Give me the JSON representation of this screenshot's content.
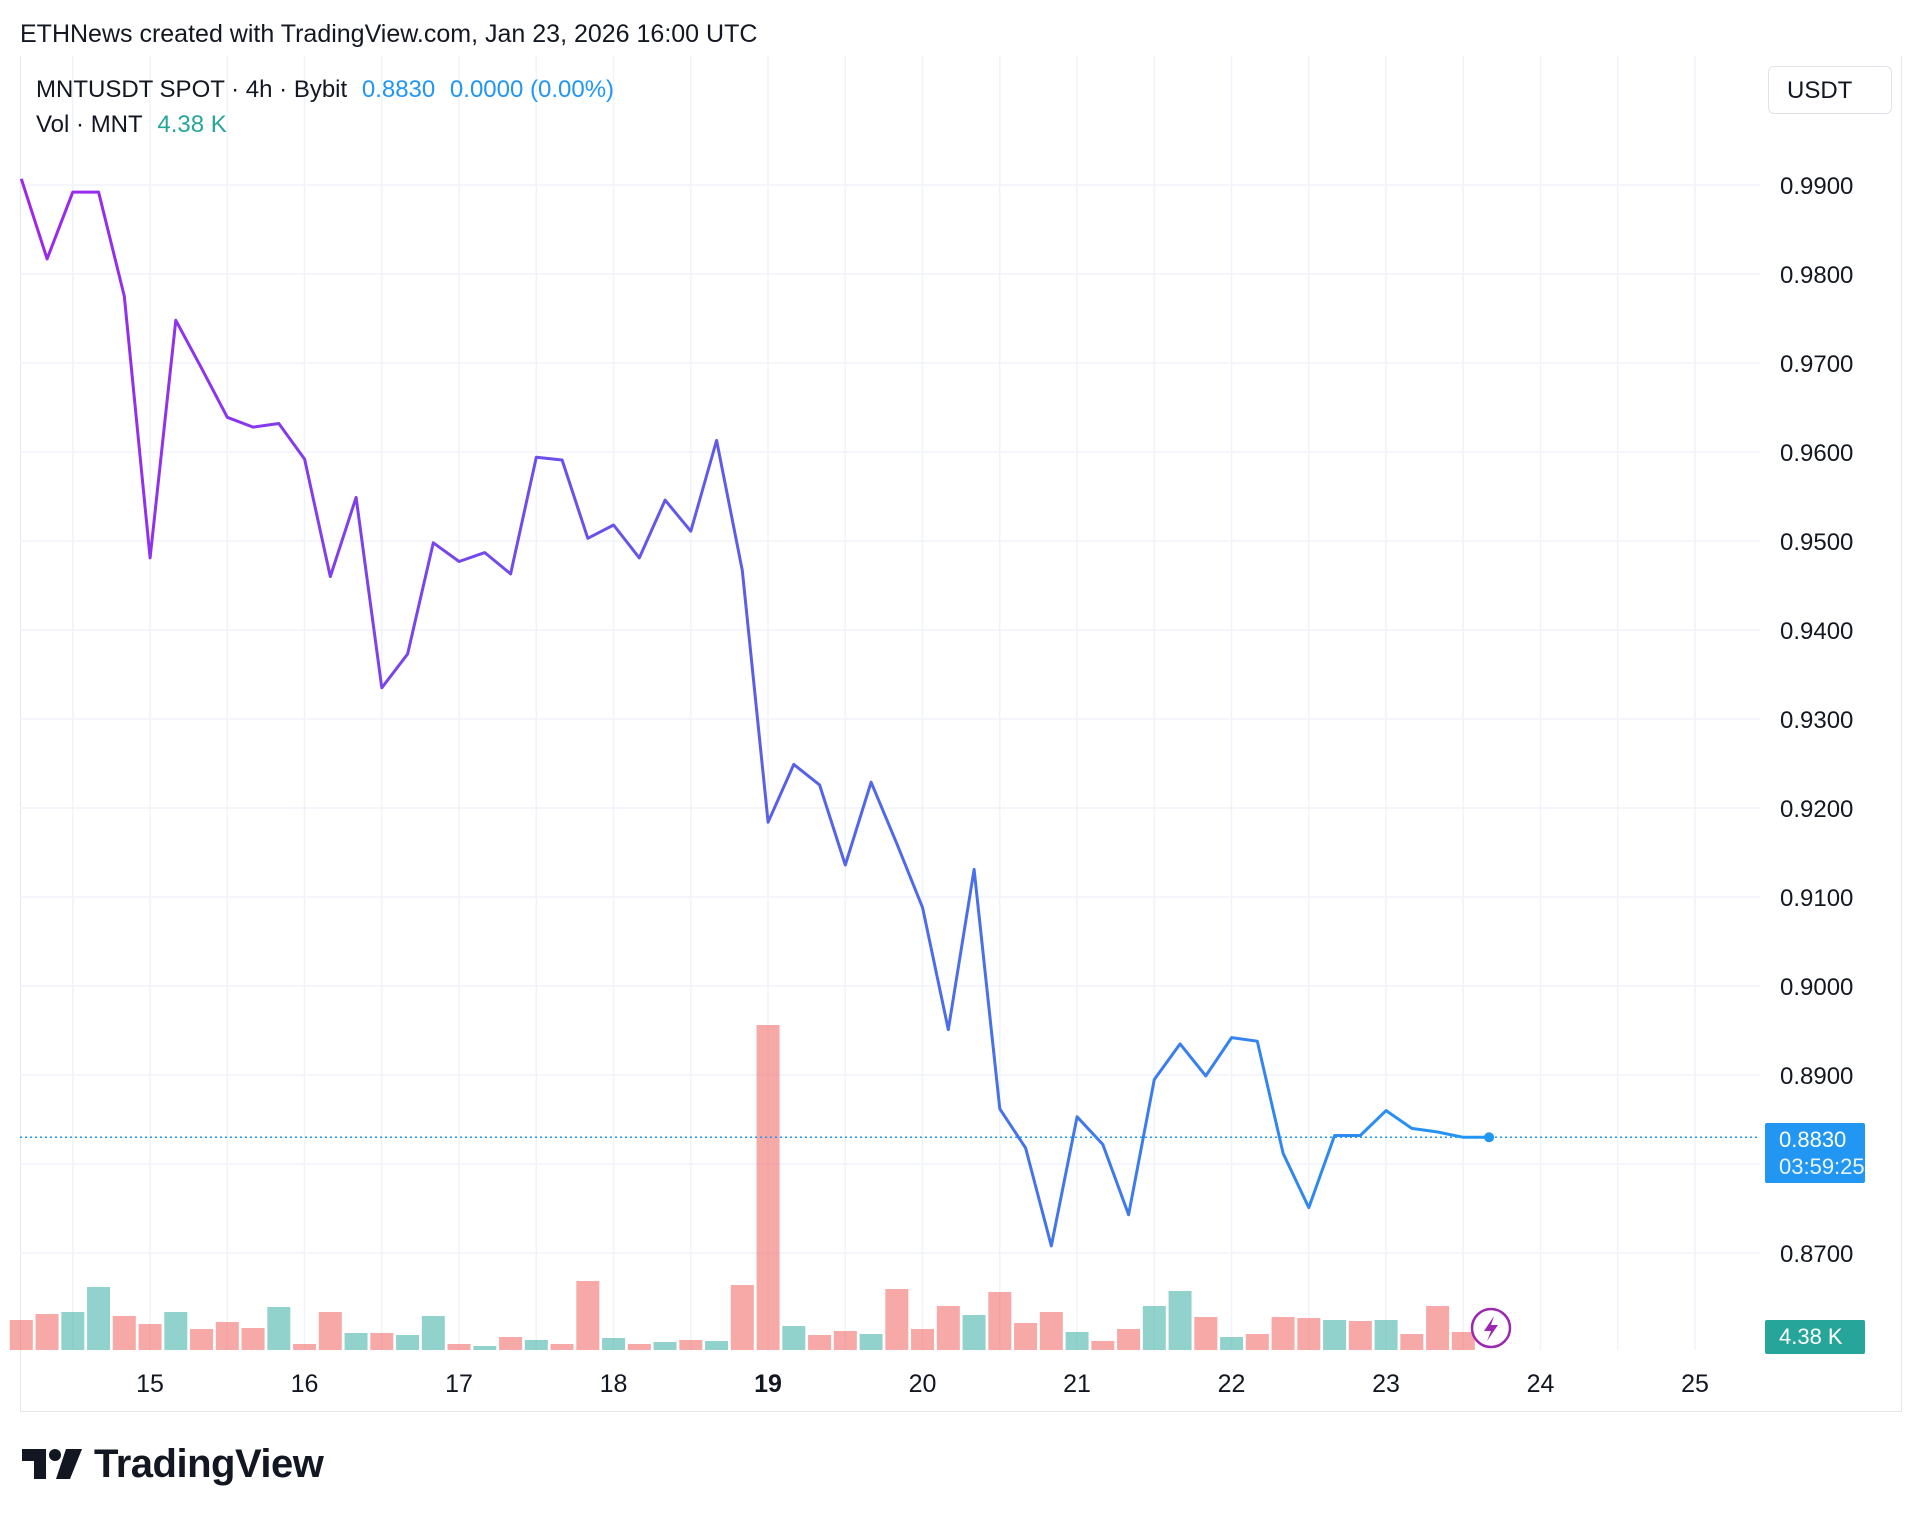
{
  "header": {
    "credit": "ETHNews created with TradingView.com, Jan 23, 2026 16:00 UTC"
  },
  "legend": {
    "symbol": "MNTUSDT SPOT · 4h · Bybit",
    "price": "0.8830",
    "change": "0.0000 (0.00%)",
    "vol_label": "Vol · MNT",
    "vol_value": "4.38 K"
  },
  "currency_button": "USDT",
  "price_tag": {
    "price": "0.8830",
    "countdown": "03:59:25"
  },
  "volume_tag": "4.38 K",
  "footer": {
    "logo_text": "TradingView"
  },
  "colors": {
    "line_start": "#9c27f0",
    "line_mid": "#5b5ee8",
    "line_end": "#2196f3",
    "volume_up": "#26a69a",
    "volume_down": "#ef5350",
    "price_tag": "#2196f3",
    "volume_tag": "#26a69a"
  },
  "chart_data": {
    "type": "line",
    "title": "MNTUSDT SPOT · 4h · Bybit",
    "xlabel": "",
    "ylabel": "",
    "ylim": [
      0.8595,
      0.9967
    ],
    "y_ticks": [
      "0.9900",
      "0.9800",
      "0.9700",
      "0.9600",
      "0.9500",
      "0.9400",
      "0.9300",
      "0.9200",
      "0.9100",
      "0.9000",
      "0.8900",
      "0.8700"
    ],
    "x_ticks": [
      {
        "day": 15,
        "label": "15",
        "bold": false
      },
      {
        "day": 16,
        "label": "16",
        "bold": false
      },
      {
        "day": 17,
        "label": "17",
        "bold": false
      },
      {
        "day": 18,
        "label": "18",
        "bold": false
      },
      {
        "day": 19,
        "label": "19",
        "bold": true
      },
      {
        "day": 20,
        "label": "20",
        "bold": false
      },
      {
        "day": 21,
        "label": "21",
        "bold": false
      },
      {
        "day": 22,
        "label": "22",
        "bold": false
      },
      {
        "day": 23,
        "label": "23",
        "bold": false
      },
      {
        "day": 24,
        "label": "24",
        "bold": false
      },
      {
        "day": 25,
        "label": "25",
        "bold": false
      }
    ],
    "x_start_day": 14.167,
    "bar_interval_days": 0.16667,
    "x_range_days": [
      14.167,
      25.4
    ],
    "grid": true,
    "current_price": 0.883,
    "series": [
      {
        "values": [
          0.9907,
          0.9817,
          0.9892,
          0.9892,
          0.9775,
          0.9481,
          0.9748,
          0.9694,
          0.9639,
          0.9628,
          0.9632,
          0.9592,
          0.946,
          0.9549,
          0.9335,
          0.9373,
          0.9498,
          0.9477,
          0.9487,
          0.9463,
          0.9594,
          0.9591,
          0.9503,
          0.9518,
          0.9481,
          0.9546,
          0.9511,
          0.9613,
          0.9467,
          0.9184,
          0.9249,
          0.9226,
          0.9136,
          0.9229,
          0.916,
          0.9088,
          0.8951,
          0.9131,
          0.8862,
          0.8818,
          0.8708,
          0.8853,
          0.8822,
          0.8743,
          0.8895,
          0.8935,
          0.8899,
          0.8942,
          0.8938,
          0.8812,
          0.8751,
          0.8832,
          0.8832,
          0.886,
          0.884,
          0.8836,
          0.883,
          0.883
        ]
      }
    ],
    "volume": {
      "label": "Vol · MNT",
      "bars": [
        {
          "v": 30,
          "d": "down"
        },
        {
          "v": 36,
          "d": "down"
        },
        {
          "v": 38,
          "d": "up"
        },
        {
          "v": 63,
          "d": "up"
        },
        {
          "v": 34,
          "d": "down"
        },
        {
          "v": 26,
          "d": "down"
        },
        {
          "v": 38,
          "d": "up"
        },
        {
          "v": 21,
          "d": "down"
        },
        {
          "v": 28,
          "d": "down"
        },
        {
          "v": 22,
          "d": "down"
        },
        {
          "v": 43,
          "d": "up"
        },
        {
          "v": 6,
          "d": "down"
        },
        {
          "v": 38,
          "d": "down"
        },
        {
          "v": 17,
          "d": "up"
        },
        {
          "v": 17,
          "d": "down"
        },
        {
          "v": 15,
          "d": "up"
        },
        {
          "v": 34,
          "d": "up"
        },
        {
          "v": 6,
          "d": "down"
        },
        {
          "v": 4,
          "d": "up"
        },
        {
          "v": 13,
          "d": "down"
        },
        {
          "v": 10,
          "d": "up"
        },
        {
          "v": 6,
          "d": "down"
        },
        {
          "v": 69,
          "d": "down"
        },
        {
          "v": 12,
          "d": "up"
        },
        {
          "v": 6,
          "d": "down"
        },
        {
          "v": 8,
          "d": "up"
        },
        {
          "v": 10,
          "d": "down"
        },
        {
          "v": 9,
          "d": "up"
        },
        {
          "v": 65,
          "d": "down"
        },
        {
          "v": 325,
          "d": "down"
        },
        {
          "v": 24,
          "d": "up"
        },
        {
          "v": 15,
          "d": "down"
        },
        {
          "v": 19,
          "d": "down"
        },
        {
          "v": 16,
          "d": "up"
        },
        {
          "v": 61,
          "d": "down"
        },
        {
          "v": 21,
          "d": "down"
        },
        {
          "v": 44,
          "d": "down"
        },
        {
          "v": 35,
          "d": "up"
        },
        {
          "v": 58,
          "d": "down"
        },
        {
          "v": 27,
          "d": "down"
        },
        {
          "v": 38,
          "d": "down"
        },
        {
          "v": 18,
          "d": "up"
        },
        {
          "v": 9,
          "d": "down"
        },
        {
          "v": 21,
          "d": "down"
        },
        {
          "v": 44,
          "d": "up"
        },
        {
          "v": 59,
          "d": "up"
        },
        {
          "v": 33,
          "d": "down"
        },
        {
          "v": 13,
          "d": "up"
        },
        {
          "v": 16,
          "d": "down"
        },
        {
          "v": 33,
          "d": "down"
        },
        {
          "v": 32,
          "d": "down"
        },
        {
          "v": 30,
          "d": "up"
        },
        {
          "v": 29,
          "d": "down"
        },
        {
          "v": 30,
          "d": "up"
        },
        {
          "v": 16,
          "d": "down"
        },
        {
          "v": 44,
          "d": "down"
        },
        {
          "v": 18,
          "d": "down"
        }
      ]
    }
  }
}
